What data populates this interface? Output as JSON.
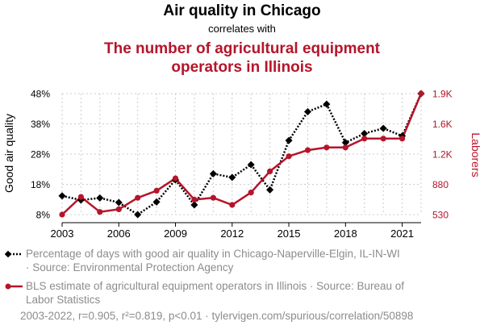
{
  "header": {
    "title": "Air quality in Chicago",
    "subtitle": "correlates with",
    "title2_line1": "The number of agricultural equipment",
    "title2_line2": "operators in Illinois"
  },
  "colors": {
    "series1": "#000000",
    "series2": "#b5152b",
    "muted": "#8c8c8c"
  },
  "legend": {
    "item1": "Percentage of days with good air quality in Chicago-Naperville-Elgin, IL-IN-WI · Source: Environmental Protection Agency",
    "item2": "BLS estimate of agricultural equipment operators in Illinois · Source: Bureau of Labor Statistics"
  },
  "footer": "2003-2022, r=0.905, r²=0.819, p<0.01 · tylervigen.com/spurious/correlation/50898",
  "chart_data": {
    "type": "line",
    "x": [
      2003,
      2004,
      2005,
      2006,
      2007,
      2008,
      2009,
      2010,
      2011,
      2012,
      2013,
      2014,
      2015,
      2016,
      2017,
      2018,
      2019,
      2020,
      2021,
      2022
    ],
    "xticks": [
      2003,
      2006,
      2009,
      2012,
      2015,
      2018,
      2021
    ],
    "xlim": [
      2003,
      2022
    ],
    "ylabel_left": "Good air quality",
    "ylabel_right": "Laborers",
    "yticks_left": [
      "8%",
      "18%",
      "28%",
      "38%",
      "48%"
    ],
    "yticks_right": [
      "530",
      "880",
      "1.2K",
      "1.6K",
      "1.9K"
    ],
    "ylim_left": [
      8,
      48
    ],
    "ylim_right": [
      530,
      1900
    ],
    "series": [
      {
        "name": "Percentage of days with good air quality in Chicago-Naperville-Elgin, IL-IN-WI",
        "axis": "left",
        "marker": "diamond",
        "style": "dotted",
        "values": [
          14.2,
          12.8,
          13.5,
          12.0,
          8.0,
          12.2,
          19.5,
          11.2,
          21.5,
          20.3,
          24.5,
          16.2,
          32.5,
          42.0,
          44.5,
          31.8,
          34.8,
          36.5,
          34.0,
          48.0
        ]
      },
      {
        "name": "BLS estimate of agricultural equipment operators in Illinois",
        "axis": "right",
        "marker": "circle",
        "style": "solid",
        "values": [
          530,
          730,
          560,
          590,
          720,
          800,
          940,
          700,
          720,
          640,
          780,
          1020,
          1190,
          1260,
          1290,
          1290,
          1390,
          1390,
          1390,
          1900
        ]
      }
    ]
  }
}
